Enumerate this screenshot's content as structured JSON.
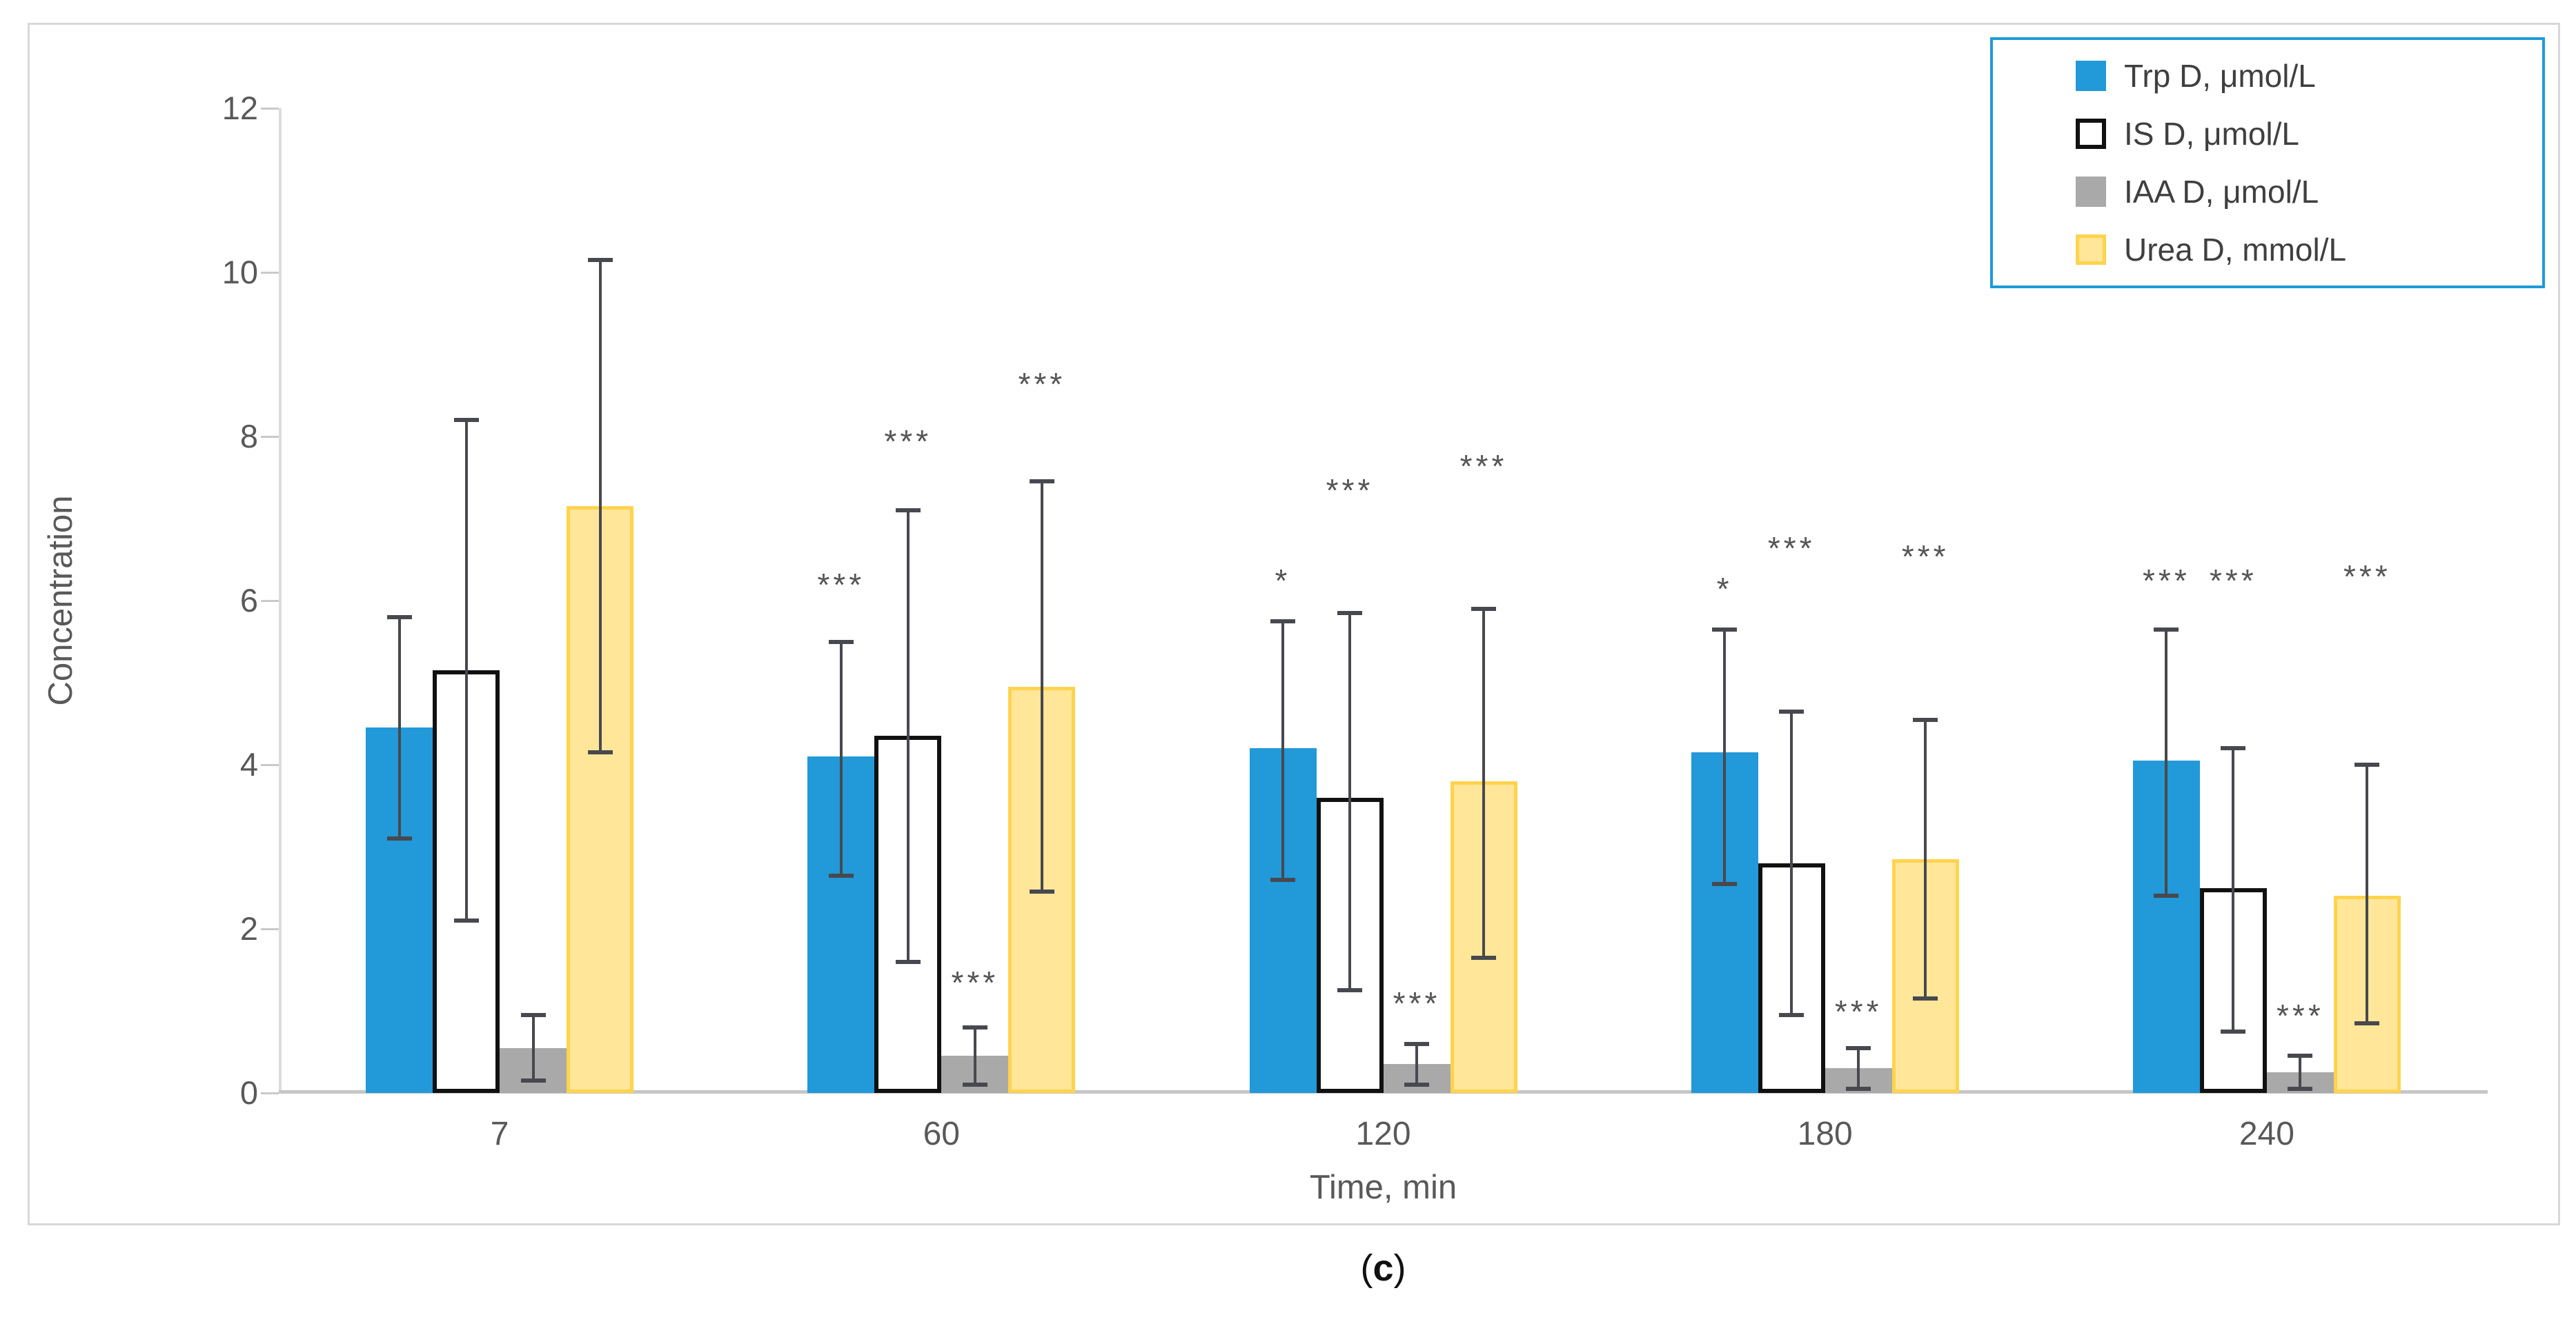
{
  "caption": {
    "prefix": "(",
    "letter": "c",
    "suffix": ")"
  },
  "chart_data": {
    "type": "bar",
    "title": "",
    "xlabel": "Time, min",
    "ylabel": "Concentration",
    "ylim": [
      0,
      12
    ],
    "yticks": [
      0,
      2,
      4,
      6,
      8,
      10,
      12
    ],
    "categories": [
      "7",
      "60",
      "120",
      "180",
      "240"
    ],
    "grid": false,
    "legend_position": "top-right",
    "series": [
      {
        "name": "Trp D, μmol/L",
        "color": "#2299D8",
        "border_color": "#2299D8",
        "border_width": 0,
        "values": [
          4.45,
          4.1,
          4.2,
          4.15,
          4.05
        ],
        "err_lo": [
          3.1,
          2.65,
          2.6,
          2.55,
          2.4
        ],
        "err_hi": [
          5.8,
          5.5,
          5.75,
          5.65,
          5.65
        ],
        "sig": [
          "",
          "***",
          "*",
          "*",
          "***"
        ],
        "sig_y": [
          0,
          6.15,
          6.2,
          6.1,
          6.2
        ]
      },
      {
        "name": "IS D, μmol/L",
        "color": "#FFFFFF",
        "border_color": "#111111",
        "border_width": 6,
        "values": [
          5.15,
          4.35,
          3.6,
          2.8,
          2.5
        ],
        "err_lo": [
          2.1,
          1.6,
          1.25,
          0.95,
          0.75
        ],
        "err_hi": [
          8.2,
          7.1,
          5.85,
          4.65,
          4.2
        ],
        "sig": [
          "",
          "***",
          "***",
          "***",
          "***"
        ],
        "sig_y": [
          0,
          7.9,
          7.3,
          6.6,
          6.2
        ]
      },
      {
        "name": "IAA D, μmol/L",
        "color": "#A9A9A9",
        "border_color": "#A9A9A9",
        "border_width": 0,
        "values": [
          0.55,
          0.45,
          0.35,
          0.3,
          0.25
        ],
        "err_lo": [
          0.15,
          0.1,
          0.1,
          0.05,
          0.05
        ],
        "err_hi": [
          0.95,
          0.8,
          0.6,
          0.55,
          0.45
        ],
        "sig": [
          "",
          "***",
          "***",
          "***",
          "***"
        ],
        "sig_y": [
          0,
          1.3,
          1.05,
          0.95,
          0.9
        ]
      },
      {
        "name": "Urea D, mmol/L",
        "color": "#FFE699",
        "border_color": "#FFD34D",
        "border_width": 5,
        "values": [
          7.15,
          4.95,
          3.8,
          2.85,
          2.4
        ],
        "err_lo": [
          4.15,
          2.45,
          1.65,
          1.15,
          0.85
        ],
        "err_hi": [
          10.15,
          7.45,
          5.9,
          4.55,
          4.0
        ],
        "sig": [
          "",
          "***",
          "***",
          "***",
          "***"
        ],
        "sig_y": [
          0,
          8.6,
          7.6,
          6.5,
          6.25
        ]
      }
    ],
    "colors": {
      "error_bar": "#47494E",
      "sig_marker": "#555555",
      "axis_text": "#595959",
      "legend_border": "#1E9BD7",
      "panel_border": "#D8D8D8"
    }
  }
}
